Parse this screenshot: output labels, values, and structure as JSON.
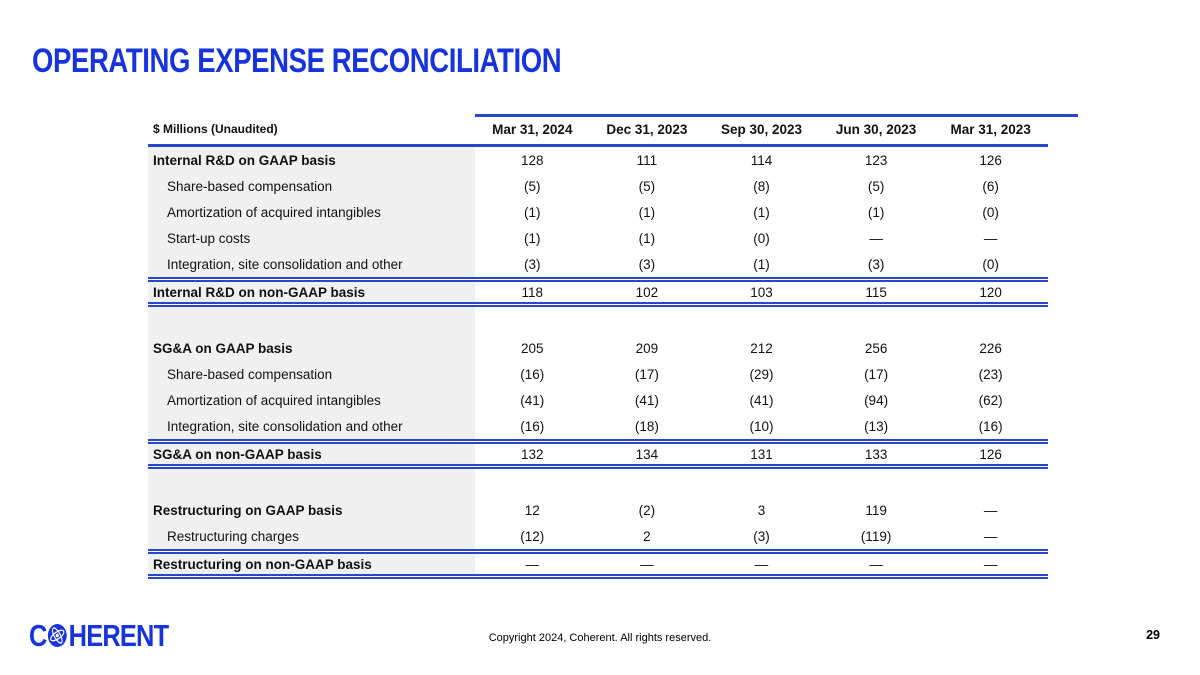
{
  "title": "OPERATING EXPENSE RECONCILIATION",
  "colors": {
    "accent_blue": "#1733DC",
    "line_blue": "#2846C8",
    "label_column_bg": "#f0f0f0",
    "text": "#111111"
  },
  "table": {
    "unit_label": "$ Millions (Unaudited)",
    "columns": [
      "Mar 31, 2024",
      "Dec 31, 2023",
      "Sep 30, 2023",
      "Jun 30, 2023",
      "Mar 31, 2023"
    ],
    "rows": [
      {
        "label": "Internal R&D on GAAP basis",
        "style": "section",
        "values": [
          "128",
          "111",
          "114",
          "123",
          "126"
        ]
      },
      {
        "label": "Share-based compensation",
        "style": "sub",
        "values": [
          "(5)",
          "(5)",
          "(8)",
          "(5)",
          "(6)"
        ]
      },
      {
        "label": "Amortization of acquired intangibles",
        "style": "sub",
        "values": [
          "(1)",
          "(1)",
          "(1)",
          "(1)",
          "(0)"
        ]
      },
      {
        "label": "Start-up costs",
        "style": "sub",
        "values": [
          "(1)",
          "(1)",
          "(0)",
          "—",
          "—"
        ]
      },
      {
        "label": "Integration, site consolidation and other",
        "style": "sub",
        "values": [
          "(3)",
          "(3)",
          "(1)",
          "(3)",
          "(0)"
        ]
      },
      {
        "label": "Internal R&D on non-GAAP basis",
        "style": "total",
        "values": [
          "118",
          "102",
          "103",
          "115",
          "120"
        ]
      },
      {
        "label": "",
        "style": "spacer",
        "values": [
          "",
          "",
          "",
          "",
          ""
        ]
      },
      {
        "label": "SG&A on GAAP basis",
        "style": "section",
        "values": [
          "205",
          "209",
          "212",
          "256",
          "226"
        ]
      },
      {
        "label": "Share-based compensation",
        "style": "sub",
        "values": [
          "(16)",
          "(17)",
          "(29)",
          "(17)",
          "(23)"
        ]
      },
      {
        "label": "Amortization of acquired intangibles",
        "style": "sub",
        "values": [
          "(41)",
          "(41)",
          "(41)",
          "(94)",
          "(62)"
        ]
      },
      {
        "label": "Integration, site consolidation and other",
        "style": "sub",
        "values": [
          "(16)",
          "(18)",
          "(10)",
          "(13)",
          "(16)"
        ]
      },
      {
        "label": "SG&A on non-GAAP basis",
        "style": "total",
        "values": [
          "132",
          "134",
          "131",
          "133",
          "126"
        ]
      },
      {
        "label": "",
        "style": "spacer",
        "values": [
          "",
          "",
          "",
          "",
          ""
        ]
      },
      {
        "label": "Restructuring on GAAP basis",
        "style": "section",
        "values": [
          "12",
          "(2)",
          "3",
          "119",
          "—"
        ]
      },
      {
        "label": "Restructuring charges",
        "style": "sub",
        "values": [
          "(12)",
          "2",
          "(3)",
          "(119)",
          "—"
        ]
      },
      {
        "label": "Restructuring on non-GAAP basis",
        "style": "total",
        "values": [
          "—",
          "—",
          "—",
          "—",
          "—"
        ]
      }
    ]
  },
  "footer": {
    "logo_left": "C",
    "logo_right": "HERENT",
    "logo_name": "COHERENT",
    "copyright": "Copyright 2024, Coherent. All rights reserved.",
    "page_number": "29"
  }
}
